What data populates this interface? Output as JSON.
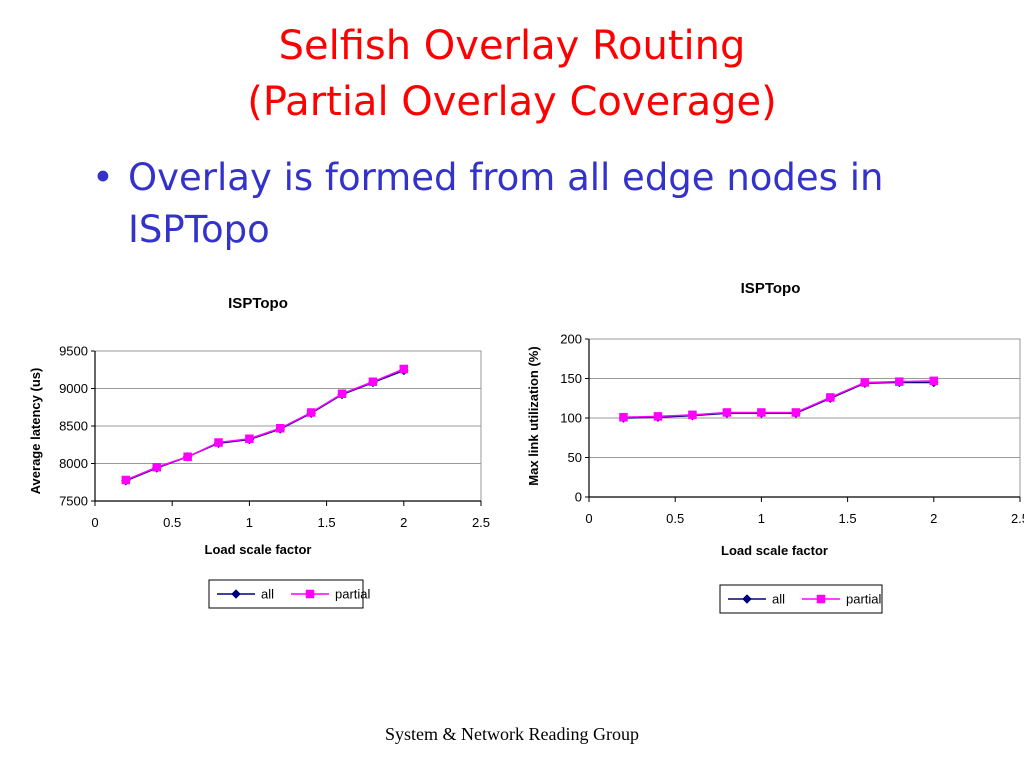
{
  "slide": {
    "title_line1": "Selfish Overlay Routing",
    "title_line2": "(Partial Overlay Coverage)",
    "bullet": "Overlay is formed from all edge nodes in ISPTopo",
    "footer": "System & Network Reading Group"
  },
  "colors": {
    "all": "#000080",
    "partial": "#ff00ff",
    "title": "#ff0000",
    "bullet": "#3333cc"
  },
  "chart_data": [
    {
      "type": "line",
      "title": "ISPTopo",
      "xlabel": "Load scale factor",
      "ylabel": "Average latency (us)",
      "xlim": [
        0,
        2.5
      ],
      "ylim": [
        7500,
        9500
      ],
      "xticks": [
        "0",
        "0.5",
        "1",
        "1.5",
        "2",
        "2.5"
      ],
      "yticks": [
        "7500",
        "8000",
        "8500",
        "9000",
        "9500"
      ],
      "grid": true,
      "legend_position": "bottom",
      "x": [
        0.2,
        0.4,
        0.6,
        0.8,
        1.0,
        1.2,
        1.4,
        1.6,
        1.8,
        2.0
      ],
      "series": [
        {
          "name": "all",
          "marker": "diamond",
          "values": [
            7770,
            7940,
            8090,
            8270,
            8320,
            8460,
            8670,
            8920,
            9080,
            9240
          ]
        },
        {
          "name": "partial",
          "marker": "square",
          "values": [
            7780,
            7950,
            8090,
            8280,
            8330,
            8470,
            8680,
            8930,
            9090,
            9260
          ]
        }
      ]
    },
    {
      "type": "line",
      "title": "ISPTopo",
      "xlabel": "Load scale factor",
      "ylabel": "Max link utilization (%)",
      "xlim": [
        0,
        2.5
      ],
      "ylim": [
        0,
        200
      ],
      "xticks": [
        "0",
        "0.5",
        "1",
        "1.5",
        "2",
        "2.5"
      ],
      "yticks": [
        "0",
        "50",
        "100",
        "150",
        "200"
      ],
      "grid": true,
      "legend_position": "bottom",
      "x": [
        0.2,
        0.4,
        0.6,
        0.8,
        1.0,
        1.2,
        1.4,
        1.6,
        1.8,
        2.0
      ],
      "series": [
        {
          "name": "all",
          "marker": "diamond",
          "values": [
            100,
            101,
            103,
            106,
            106,
            106,
            125,
            144,
            145,
            145
          ]
        },
        {
          "name": "partial",
          "marker": "square",
          "values": [
            101,
            102,
            104,
            107,
            107,
            107,
            126,
            145,
            146,
            147
          ]
        }
      ]
    }
  ]
}
